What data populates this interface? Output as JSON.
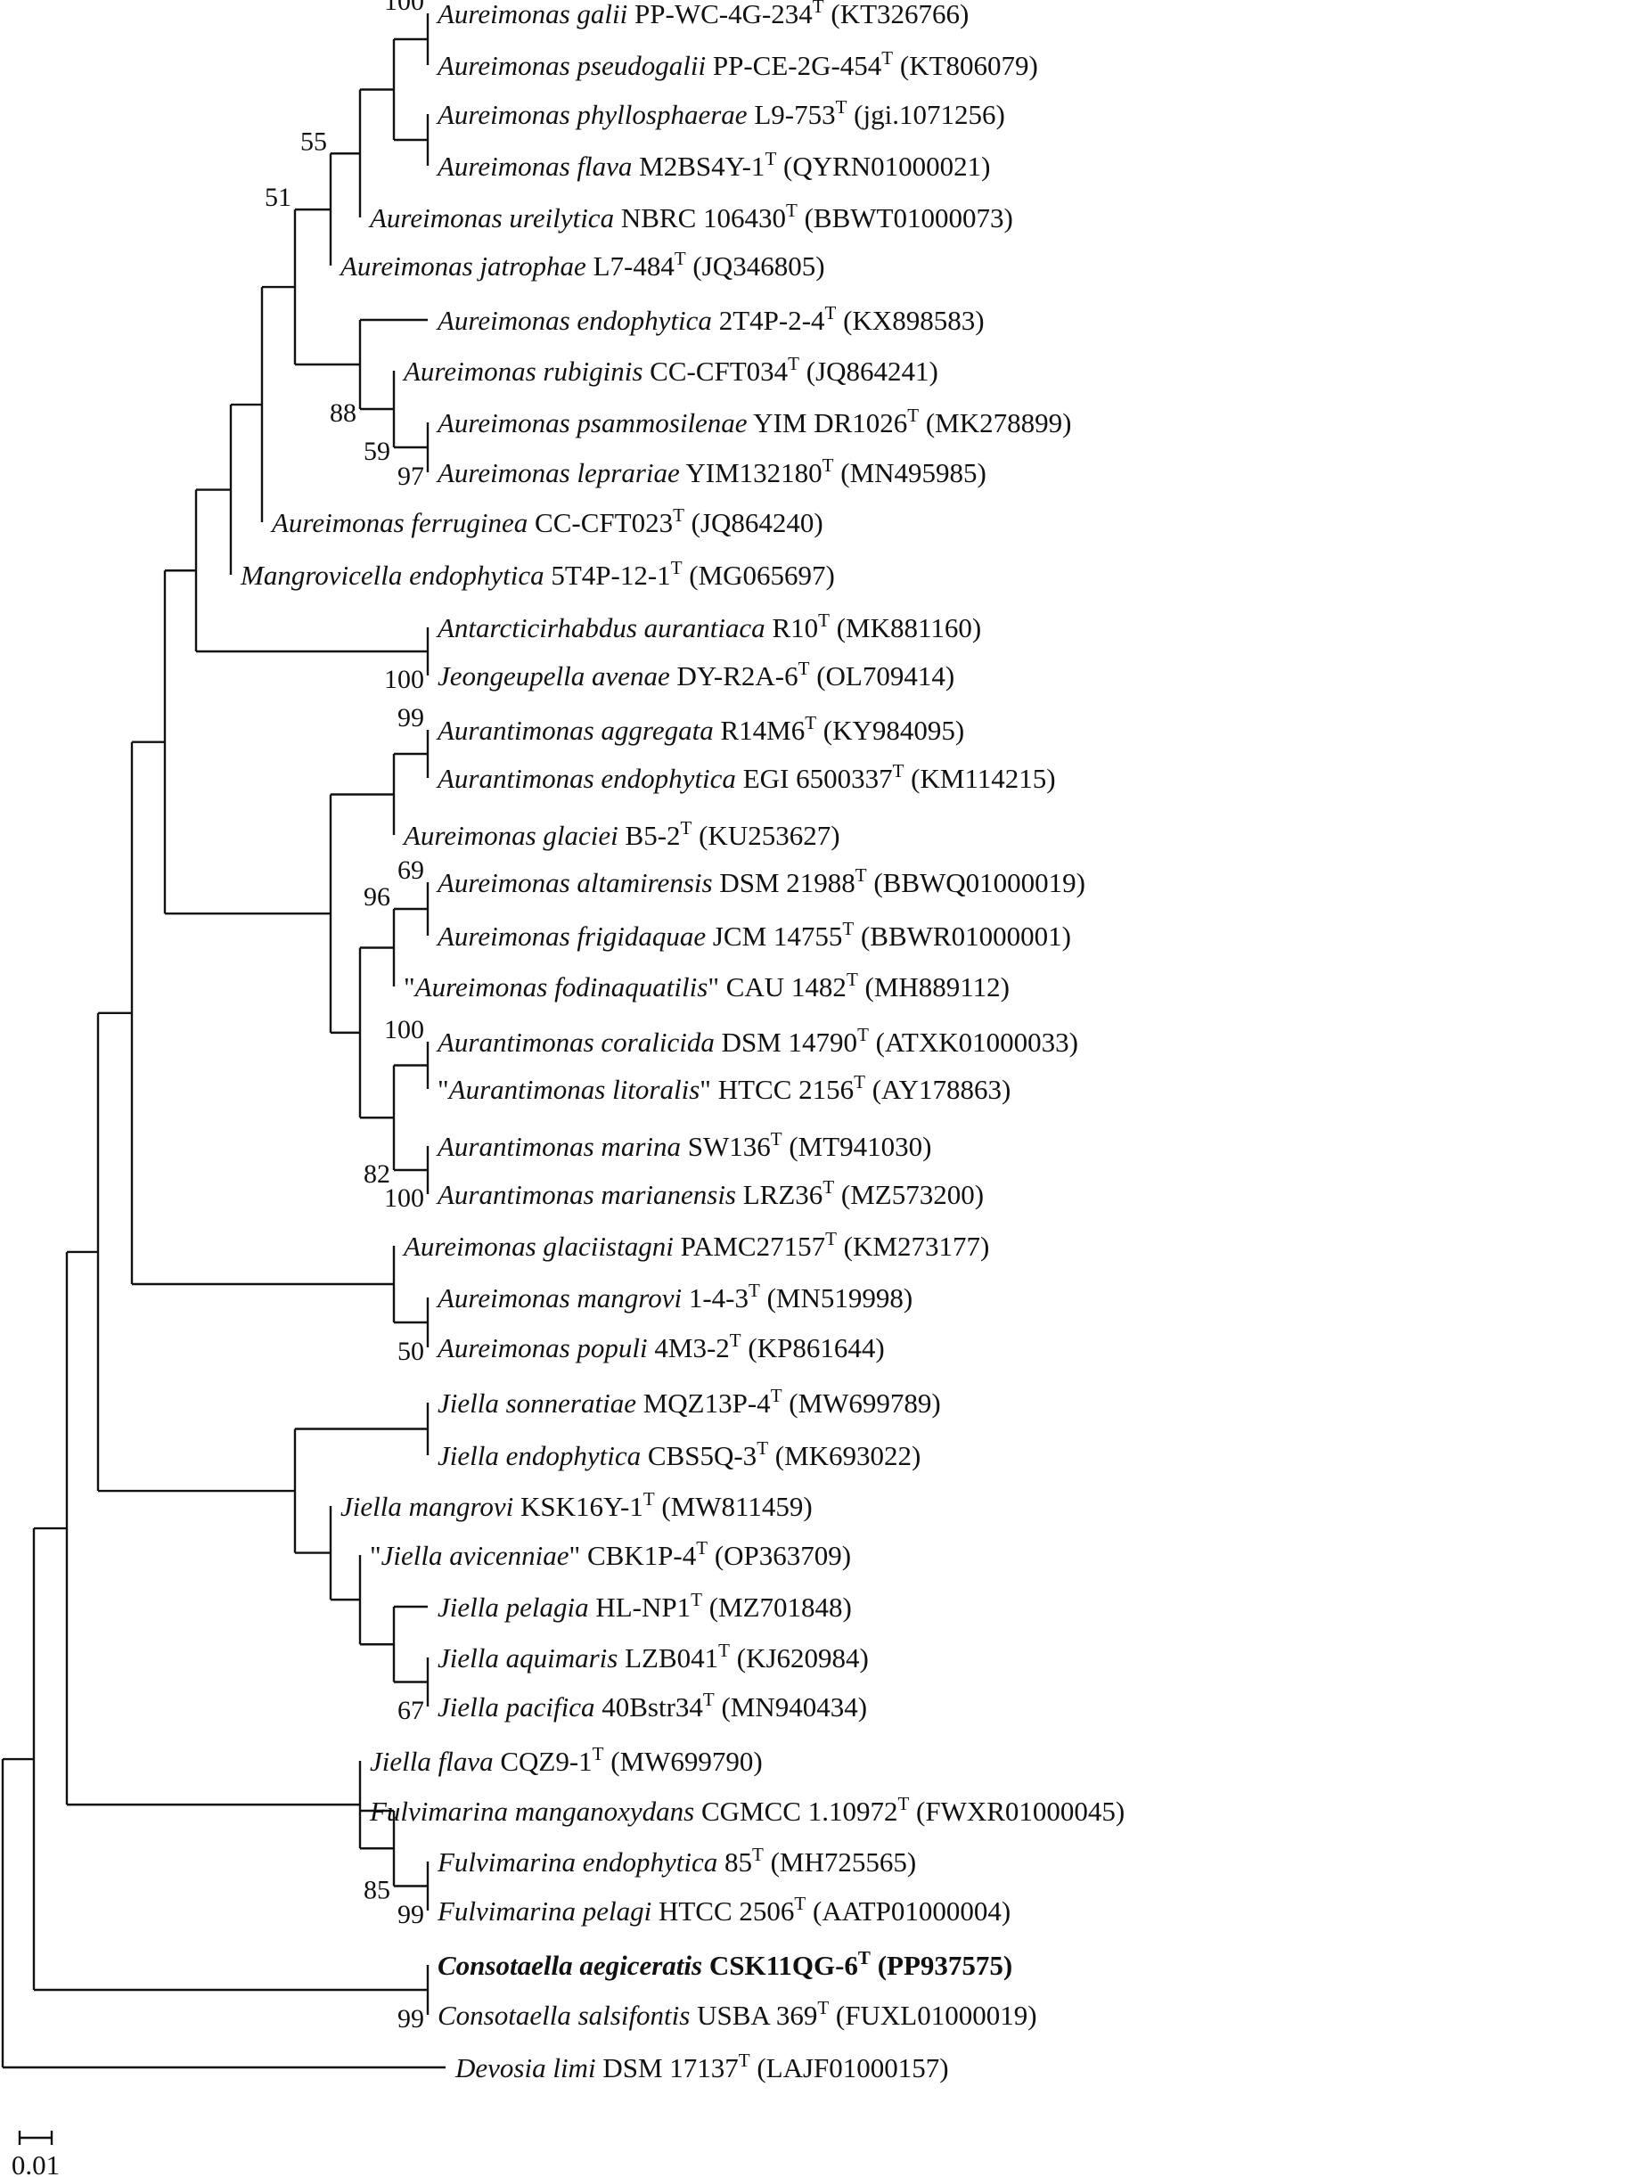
{
  "scale_bar": {
    "label": "0.01"
  },
  "taxa": [
    {
      "genus": "Aureimonas",
      "epithet": "galii",
      "strain": "PP-WC-4G-234",
      "accession": "(KT326766)"
    },
    {
      "genus": "Aureimonas",
      "epithet": "pseudogalii",
      "strain": "PP-CE-2G-454",
      "accession": "(KT806079)"
    },
    {
      "genus": "Aureimonas",
      "epithet": "phyllosphaerae",
      "strain": "L9-753",
      "accession": "(jgi.1071256)"
    },
    {
      "genus": "Aureimonas",
      "epithet": "flava",
      "strain": "M2BS4Y-1",
      "accession": "(QYRN01000021)"
    },
    {
      "genus": "Aureimonas",
      "epithet": "ureilytica",
      "strain": "NBRC 106430",
      "accession": "(BBWT01000073)"
    },
    {
      "genus": "Aureimonas",
      "epithet": "jatrophae",
      "strain": "L7-484",
      "accession": "(JQ346805)"
    },
    {
      "genus": "Aureimonas",
      "epithet": "endophytica",
      "strain": "2T4P-2-4",
      "accession": "(KX898583)"
    },
    {
      "genus": "Aureimonas",
      "epithet": "rubiginis",
      "strain": "CC-CFT034",
      "accession": "(JQ864241)"
    },
    {
      "genus": "Aureimonas",
      "epithet": "psammosilenae",
      "strain": "YIM DR1026",
      "accession": "(MK278899)"
    },
    {
      "genus": "Aureimonas",
      "epithet": "leprariae",
      "strain": "YIM132180",
      "accession": "(MN495985)"
    },
    {
      "genus": "Aureimonas",
      "epithet": "ferruginea",
      "strain": "CC-CFT023",
      "accession": "(JQ864240)"
    },
    {
      "genus": "Mangrovicella",
      "epithet": "endophytica",
      "strain": "5T4P-12-1",
      "accession": "(MG065697)"
    },
    {
      "genus": "Antarcticirhabdus",
      "epithet": "aurantiaca",
      "strain": "R10",
      "accession": "(MK881160)"
    },
    {
      "genus": "Jeongeupella",
      "epithet": "avenae",
      "strain": "DY-R2A-6",
      "accession": "(OL709414)"
    },
    {
      "genus": "Aurantimonas",
      "epithet": "aggregata",
      "strain": "R14M6",
      "accession": "(KY984095)"
    },
    {
      "genus": "Aurantimonas",
      "epithet": "endophytica",
      "strain": "EGI 6500337",
      "accession": "(KM114215)"
    },
    {
      "genus": "Aureimonas",
      "epithet": "glaciei",
      "strain": "B5-2",
      "accession": "(KU253627)"
    },
    {
      "genus": "Aureimonas",
      "epithet": "altamirensis",
      "strain": "DSM 21988",
      "accession": "(BBWQ01000019)"
    },
    {
      "genus": "Aureimonas",
      "epithet": "frigidaquae",
      "strain": "JCM 14755",
      "accession": "(BBWR01000001)"
    },
    {
      "genus": "Aureimonas",
      "epithet": "fodinaquatilis",
      "strain": "CAU 1482",
      "accession": "(MH889112)",
      "quoted": true
    },
    {
      "genus": "Aurantimonas",
      "epithet": "coralicida",
      "strain": "DSM 14790",
      "accession": "(ATXK01000033)"
    },
    {
      "genus": "Aurantimonas",
      "epithet": "litoralis",
      "strain": "HTCC 2156",
      "accession": "(AY178863)",
      "quoted": true
    },
    {
      "genus": "Aurantimonas",
      "epithet": "marina",
      "strain": "SW136",
      "accession": "(MT941030)"
    },
    {
      "genus": "Aurantimonas",
      "epithet": "marianensis",
      "strain": "LRZ36",
      "accession": "(MZ573200)"
    },
    {
      "genus": "Aureimonas",
      "epithet": "glaciistagni",
      "strain": "PAMC27157",
      "accession": "(KM273177)"
    },
    {
      "genus": "Aureimonas",
      "epithet": "mangrovi",
      "strain": "1-4-3",
      "accession": "(MN519998)"
    },
    {
      "genus": "Aureimonas",
      "epithet": "populi",
      "strain": "4M3-2",
      "accession": "(KP861644)"
    },
    {
      "genus": "Jiella",
      "epithet": "sonneratiae",
      "strain": "MQZ13P-4",
      "accession": "(MW699789)"
    },
    {
      "genus": "Jiella",
      "epithet": "endophytica",
      "strain": "CBS5Q-3",
      "accession": "(MK693022)"
    },
    {
      "genus": "Jiella",
      "epithet": "mangrovi",
      "strain": "KSK16Y-1",
      "accession": "(MW811459)"
    },
    {
      "genus": "Jiella",
      "epithet": "avicenniae",
      "strain": "CBK1P-4",
      "accession": "(OP363709)",
      "quoted": true
    },
    {
      "genus": "Jiella",
      "epithet": "pelagia",
      "strain": "HL-NP1",
      "accession": "(MZ701848)"
    },
    {
      "genus": "Jiella",
      "epithet": "aquimaris",
      "strain": "LZB041",
      "accession": "(KJ620984)"
    },
    {
      "genus": "Jiella",
      "epithet": "pacifica",
      "strain": "40Bstr34",
      "accession": "(MN940434)"
    },
    {
      "genus": "Jiella",
      "epithet": "flava",
      "strain": "CQZ9-1",
      "accession": "(MW699790)"
    },
    {
      "genus": "Fulvimarina",
      "epithet": "manganoxydans",
      "strain": "CGMCC 1.10972",
      "accession": "(FWXR01000045)"
    },
    {
      "genus": "Fulvimarina",
      "epithet": "endophytica",
      "strain": "85",
      "accession": "(MH725565)"
    },
    {
      "genus": "Fulvimarina",
      "epithet": "pelagi",
      "strain": "HTCC 2506",
      "accession": "(AATP01000004)"
    },
    {
      "genus": "Consotaella",
      "epithet": "aegiceratis",
      "strain": "CSK11QG-6",
      "accession": "(PP937575)",
      "bold": true
    },
    {
      "genus": "Consotaella",
      "epithet": "salsifontis",
      "strain": "USBA 369",
      "accession": "(FUXL01000019)"
    },
    {
      "genus": "Devosia",
      "epithet": "limi",
      "strain": "DSM 17137",
      "accession": "(LAJF01000157)"
    }
  ],
  "type_strain_mark": "T",
  "bootstrap_values": [
    "100",
    "55",
    "51",
    "88",
    "59",
    "97",
    "100",
    "99",
    "69",
    "96",
    "100",
    "82",
    "100",
    "50",
    "67",
    "85",
    "99",
    "99"
  ]
}
